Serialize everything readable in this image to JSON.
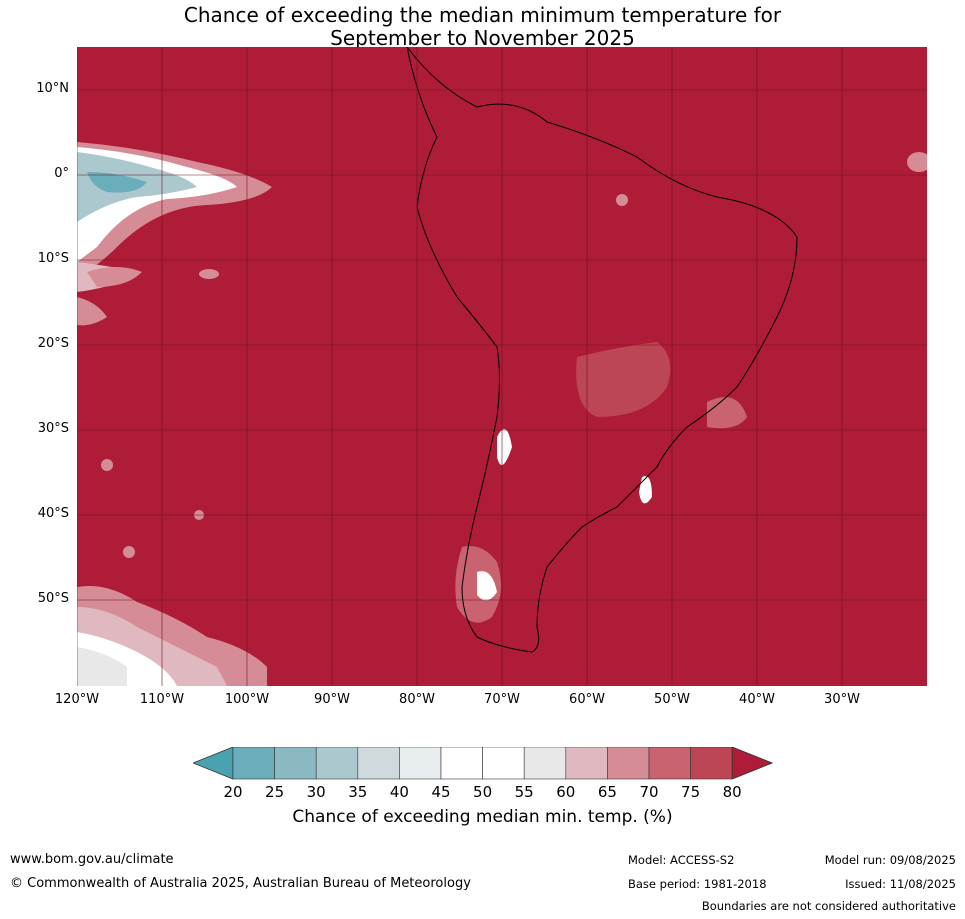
{
  "title": {
    "line1": "Chance of exceeding the median minimum temperature for",
    "line2": "September to November 2025"
  },
  "map": {
    "lat_labels": [
      "10°N",
      "0°",
      "10°S",
      "20°S",
      "30°S",
      "40°S",
      "50°S"
    ],
    "lon_labels": [
      "120°W",
      "110°W",
      "100°W",
      "90°W",
      "80°W",
      "70°W",
      "60°W",
      "50°W",
      "40°W",
      "30°W"
    ],
    "background_color": "#ae1c37"
  },
  "legend": {
    "ticks": [
      "20",
      "25",
      "30",
      "35",
      "40",
      "45",
      "50",
      "55",
      "60",
      "65",
      "70",
      "75",
      "80"
    ],
    "colors": [
      "#4aa2b0",
      "#6aaebb",
      "#8ab9c4",
      "#abc8cf",
      "#d0dadd",
      "#e8eef0",
      "#ffffff",
      "#ffffff",
      "#e8e8e8",
      "#e0b8c0",
      "#d68c97",
      "#c9636f",
      "#bd4655",
      "#ae1c37"
    ],
    "label": "Chance of exceeding median min. temp. (%)"
  },
  "footer": {
    "url": "www.bom.gov.au/climate",
    "copyright": "© Commonwealth of Australia 2025, Australian Bureau of Meteorology",
    "model": "Model: ACCESS-S2",
    "base_period": "Base period: 1981-2018",
    "model_run": "Model run: 09/08/2025",
    "issued": "Issued: 11/08/2025",
    "disclaimer": "Boundaries are not considered authoritative"
  }
}
